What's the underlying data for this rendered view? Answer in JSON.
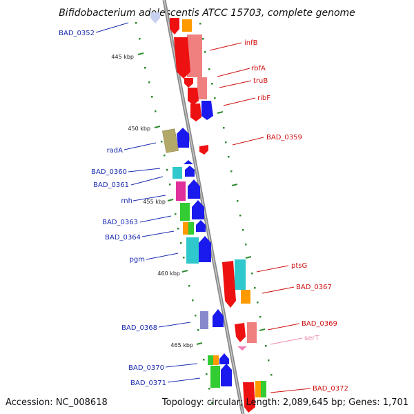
{
  "title": "Bifidobacterium adolescentis ATCC 15703, complete genome",
  "footer": {
    "accession": "Accession: NC_008618",
    "summary": "Topology: circular; Length: 2,089,645 bp; Genes: 1,701"
  },
  "colors": {
    "backbone": "#8a8a8a",
    "tick": "#2e8b2e",
    "left_label": "#1a2bb0",
    "right_label": "#d01010",
    "trna_label": "#f08aa8"
  },
  "ticks": [
    "445 kbp",
    "450 kbp",
    "455 kbp",
    "460 kbp",
    "465 kbp"
  ],
  "left_labels": [
    "BAD_0352",
    "radA",
    "BAD_0360",
    "BAD_0361",
    "rnh",
    "BAD_0363",
    "BAD_0364",
    "pgm",
    "BAD_0368",
    "BAD_0370",
    "BAD_0371"
  ],
  "right_labels": [
    "infB",
    "rbfA",
    "truB",
    "ribF",
    "BAD_0359",
    "ptsG",
    "BAD_0367",
    "BAD_0369",
    "serT",
    "BAD_0372"
  ]
}
